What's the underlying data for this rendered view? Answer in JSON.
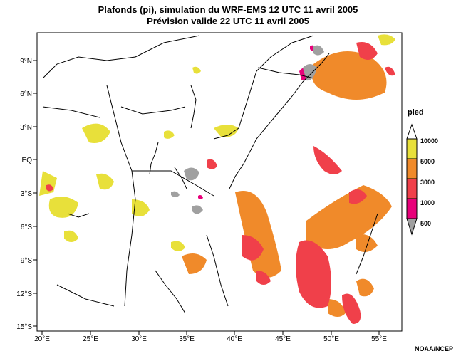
{
  "title_line1": "Plafonds (pi), simulation du WRF-EMS 12 UTC 11 avril 2005",
  "title_line2": "Prévision valide 22 UTC 11 avril 2005",
  "credit": "NOAA/NCEP",
  "map": {
    "lon_range": [
      20,
      57
    ],
    "lat_range": [
      -15,
      11
    ],
    "lon_ticks": [
      "20°E",
      "25°E",
      "30°E",
      "35°E",
      "40°E",
      "45°E",
      "50°E",
      "55°E"
    ],
    "lat_ticks": [
      "9°N",
      "6°N",
      "3°N",
      "EQ",
      "3°S",
      "6°S",
      "9°S",
      "12°S",
      "15°S"
    ]
  },
  "legend": {
    "title": "pied",
    "levels": [
      {
        "label": "10000",
        "color": "#e8e03a"
      },
      {
        "label": "5000",
        "color": "#f08a2a"
      },
      {
        "label": "3000",
        "color": "#f0404a"
      },
      {
        "label": "1000",
        "color": "#e8007a"
      },
      {
        "label": "500",
        "color": "#a0a0a0"
      }
    ]
  },
  "colors": {
    "yellow": "#e8e03a",
    "orange": "#f08a2a",
    "red": "#f0404a",
    "magenta": "#e8007a",
    "gray": "#a0a0a0"
  }
}
